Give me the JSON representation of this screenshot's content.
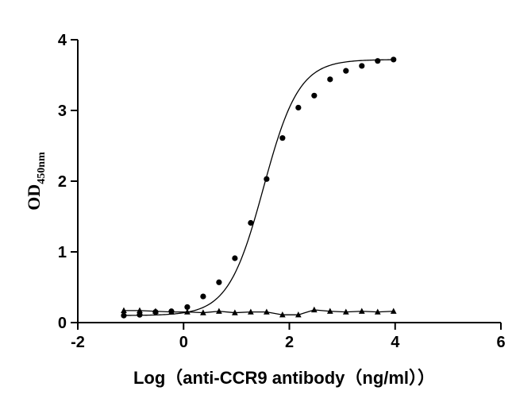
{
  "chart_data": {
    "type": "scatter",
    "xlabel": "Log（anti-CCR9 antibody（ng/ml））",
    "ylabel_main": "OD",
    "ylabel_sub": "450nm",
    "xlim": [
      -2,
      6
    ],
    "ylim": [
      0,
      4
    ],
    "x_ticks": [
      -2,
      0,
      2,
      4,
      6
    ],
    "y_ticks": [
      0,
      1,
      2,
      3,
      4
    ],
    "grid": false,
    "series": [
      {
        "marker": "circle",
        "color": "#000000",
        "fit_curve": true,
        "x": [
          -1.13,
          -0.83,
          -0.53,
          -0.23,
          0.07,
          0.37,
          0.67,
          0.97,
          1.27,
          1.57,
          1.87,
          2.17,
          2.47,
          2.77,
          3.07,
          3.37,
          3.67,
          3.97
        ],
        "y": [
          0.1,
          0.11,
          0.15,
          0.16,
          0.22,
          0.37,
          0.57,
          0.91,
          1.41,
          2.03,
          2.61,
          3.04,
          3.21,
          3.44,
          3.56,
          3.63,
          3.7,
          3.72
        ]
      },
      {
        "marker": "triangle",
        "color": "#000000",
        "fit_curve": false,
        "x": [
          -1.13,
          -0.83,
          -0.53,
          -0.23,
          0.07,
          0.37,
          0.67,
          0.97,
          1.27,
          1.57,
          1.87,
          2.17,
          2.47,
          2.77,
          3.07,
          3.37,
          3.67,
          3.97
        ],
        "y": [
          0.17,
          0.17,
          0.16,
          0.15,
          0.15,
          0.14,
          0.16,
          0.14,
          0.15,
          0.15,
          0.11,
          0.11,
          0.18,
          0.16,
          0.15,
          0.16,
          0.15,
          0.16
        ]
      }
    ]
  }
}
